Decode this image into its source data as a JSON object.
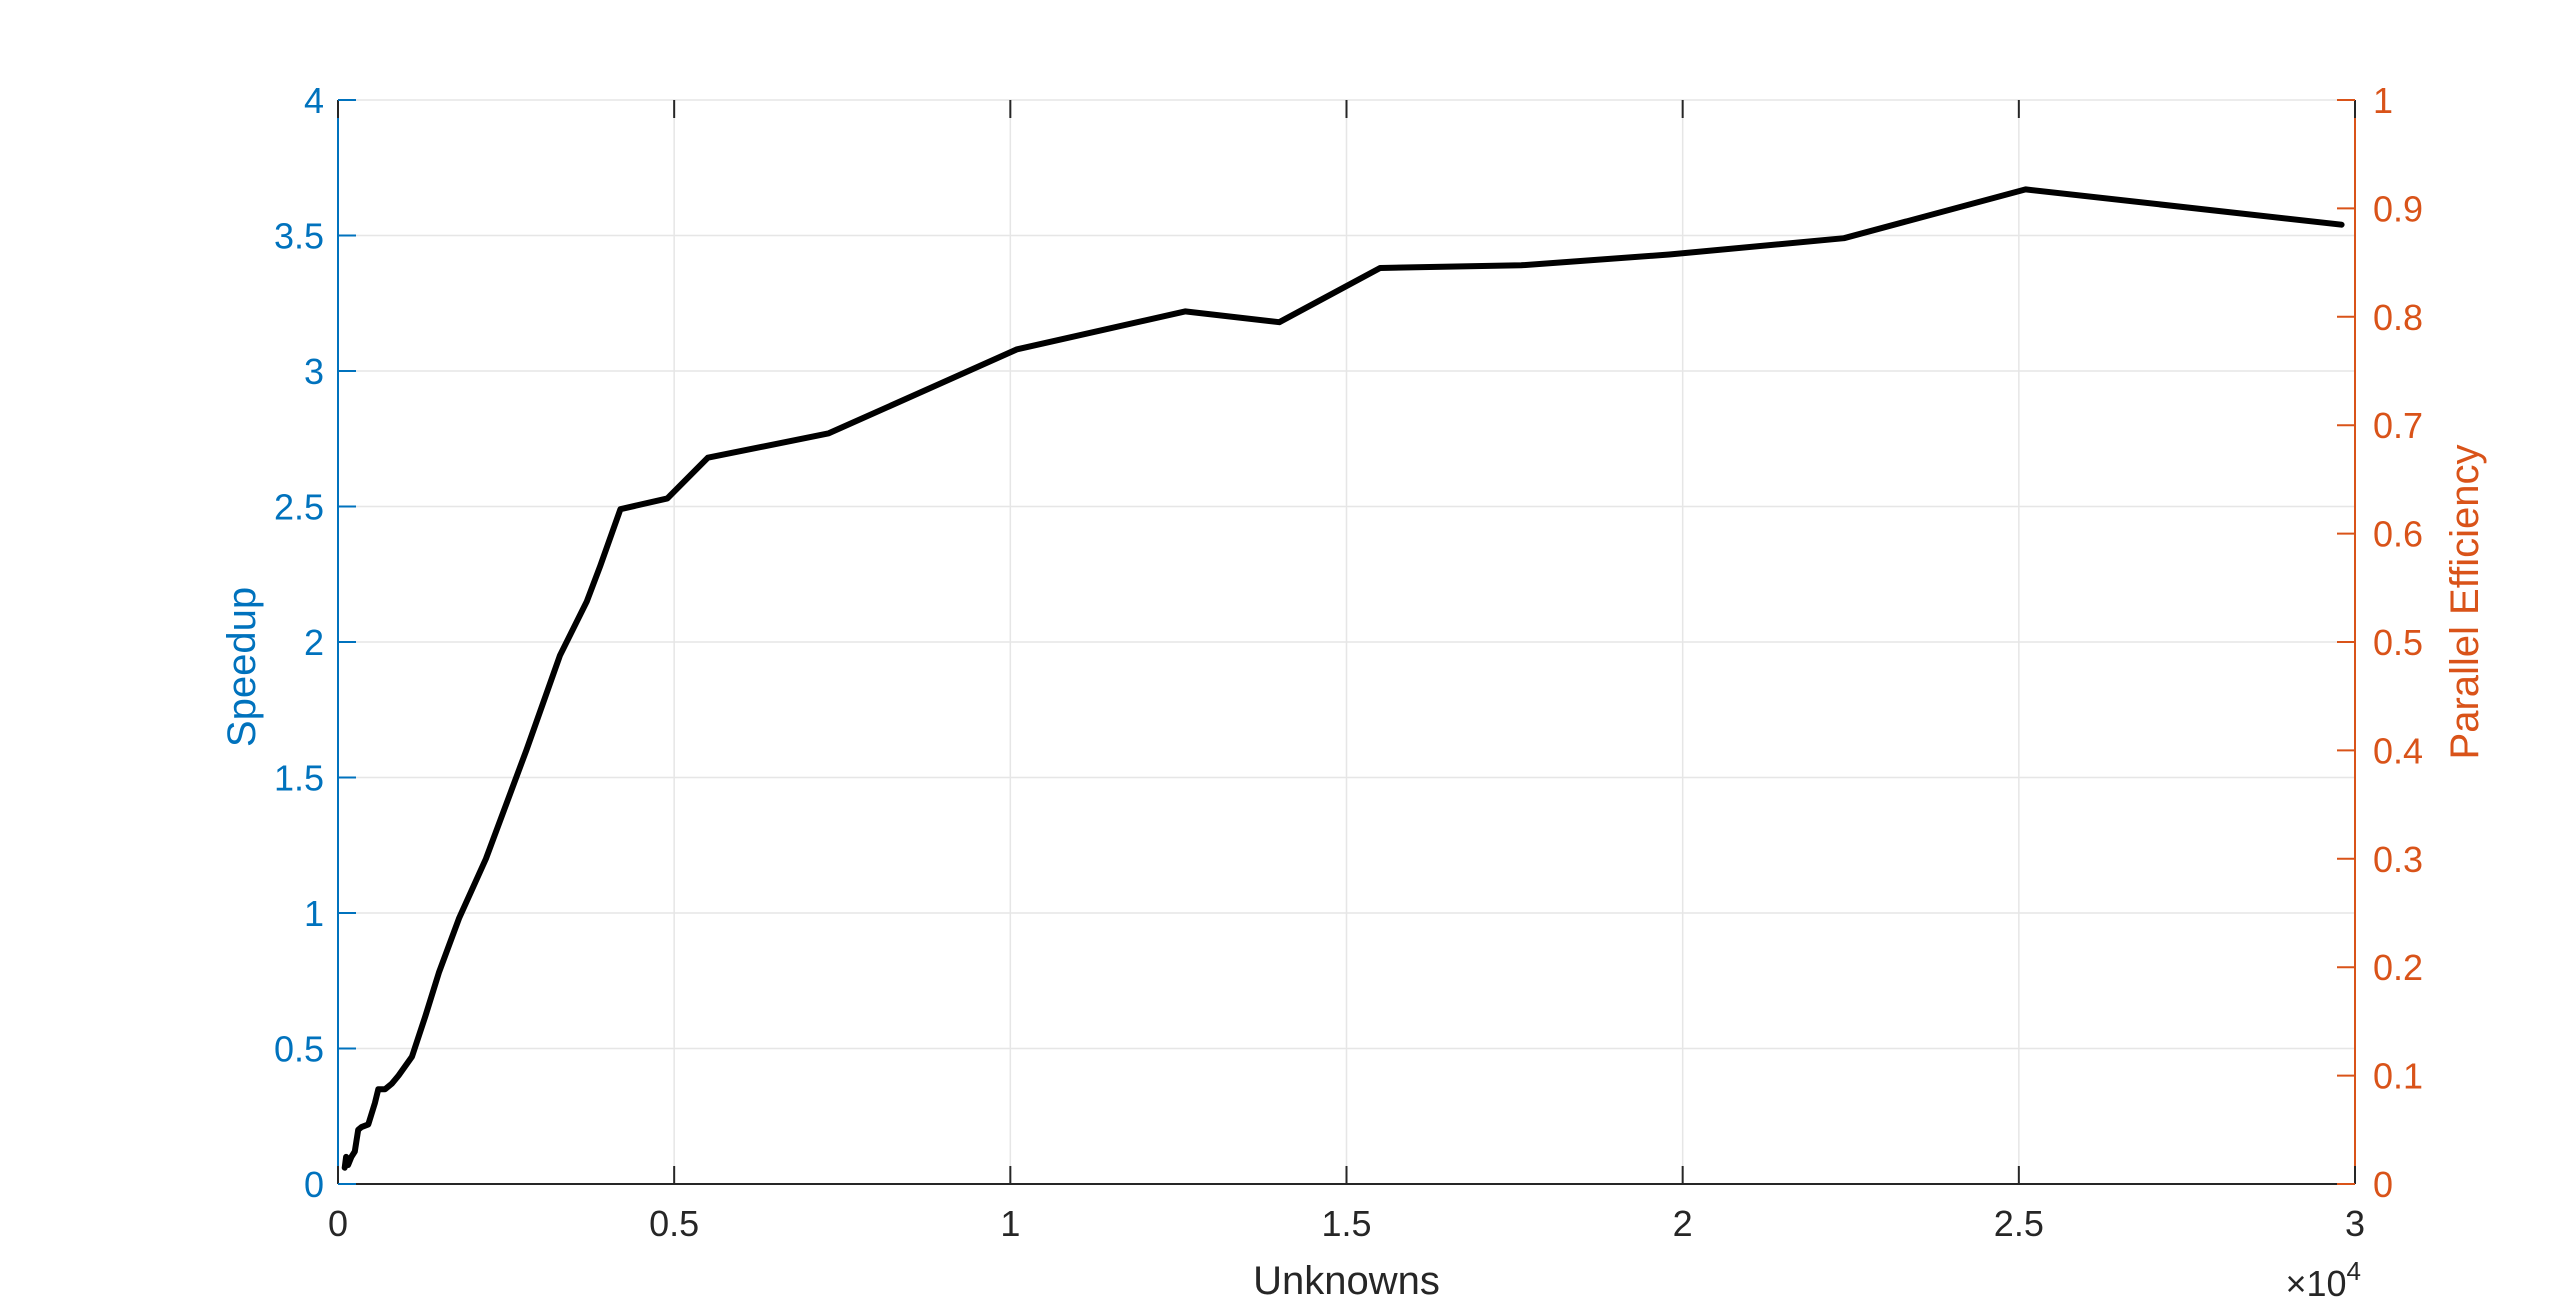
{
  "chart_data": {
    "type": "line",
    "xlabel": "Unknowns",
    "ylabel_left": "Speedup",
    "ylabel_right": "Parallel Efficiency",
    "x_exponent_base": "×10",
    "x_exponent_power": "4",
    "xlim": [
      0,
      3
    ],
    "ylim_left": [
      0,
      4
    ],
    "ylim_right": [
      0,
      1
    ],
    "x_ticks": [
      0,
      0.5,
      1,
      1.5,
      2,
      2.5,
      3
    ],
    "x_tick_labels": [
      "0",
      "0.5",
      "1",
      "1.5",
      "2",
      "2.5",
      "3"
    ],
    "y_left_ticks": [
      0,
      0.5,
      1,
      1.5,
      2,
      2.5,
      3,
      3.5,
      4
    ],
    "y_left_tick_labels": [
      "0",
      "0.5",
      "1",
      "1.5",
      "2",
      "2.5",
      "3",
      "3.5",
      "4"
    ],
    "y_right_ticks": [
      0,
      0.1,
      0.2,
      0.3,
      0.4,
      0.5,
      0.6,
      0.7,
      0.8,
      0.9,
      1
    ],
    "y_right_tick_labels": [
      "0",
      "0.1",
      "0.2",
      "0.3",
      "0.4",
      "0.5",
      "0.6",
      "0.7",
      "0.8",
      "0.9",
      "1"
    ],
    "grid": true,
    "colors": {
      "left_axis": "#0072BD",
      "right_axis": "#D95319",
      "line": "#000000",
      "grid": "#e6e6e6",
      "x_axis": "#262626"
    },
    "series": [
      {
        "x": [
          0.01,
          0.012,
          0.015,
          0.02,
          0.025,
          0.03,
          0.035,
          0.045,
          0.055,
          0.06,
          0.07,
          0.08,
          0.09,
          0.11,
          0.13,
          0.15,
          0.18,
          0.22,
          0.28,
          0.33,
          0.37,
          0.39,
          0.42,
          0.49,
          0.55,
          0.65,
          0.73,
          1.01,
          1.26,
          1.4,
          1.55,
          1.76,
          1.98,
          2.24,
          2.51,
          2.98
        ],
        "y": [
          0.06,
          0.1,
          0.07,
          0.1,
          0.12,
          0.2,
          0.21,
          0.22,
          0.3,
          0.35,
          0.35,
          0.37,
          0.4,
          0.47,
          0.62,
          0.78,
          0.98,
          1.2,
          1.6,
          1.95,
          2.15,
          2.28,
          2.49,
          2.53,
          2.68,
          2.73,
          2.77,
          3.08,
          3.22,
          3.18,
          3.38,
          3.39,
          3.43,
          3.49,
          3.67,
          3.54
        ]
      }
    ]
  }
}
